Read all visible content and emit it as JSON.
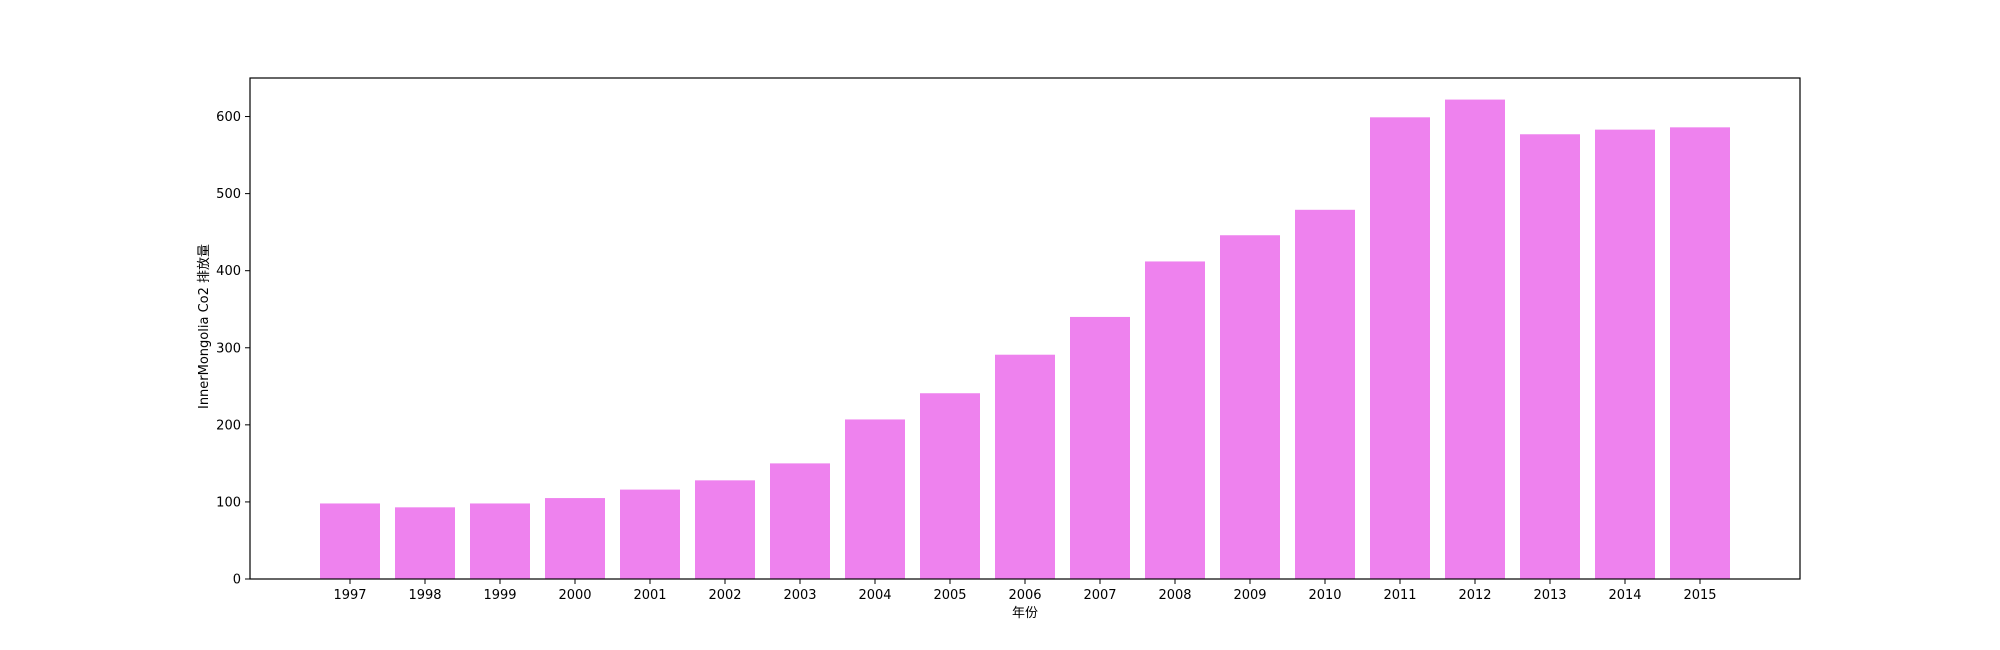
{
  "chart_data": {
    "type": "bar",
    "title": "",
    "xlabel": "年份",
    "ylabel": "InnerMongolia Co2 排放量",
    "categories": [
      "1997",
      "1998",
      "1999",
      "2000",
      "2001",
      "2002",
      "2003",
      "2004",
      "2005",
      "2006",
      "2007",
      "2008",
      "2009",
      "2010",
      "2011",
      "2012",
      "2013",
      "2014",
      "2015"
    ],
    "values": [
      98,
      93,
      98,
      105,
      116,
      128,
      150,
      207,
      241,
      291,
      340,
      412,
      446,
      479,
      599,
      622,
      577,
      583,
      586
    ],
    "ylim": [
      0,
      650
    ],
    "yticks": [
      0,
      100,
      200,
      300,
      400,
      500,
      600
    ],
    "ytick_labels": [
      "0",
      "100",
      "200",
      "300",
      "400",
      "500",
      "600"
    ],
    "grid": false,
    "bar_color": "#ee82ee"
  }
}
